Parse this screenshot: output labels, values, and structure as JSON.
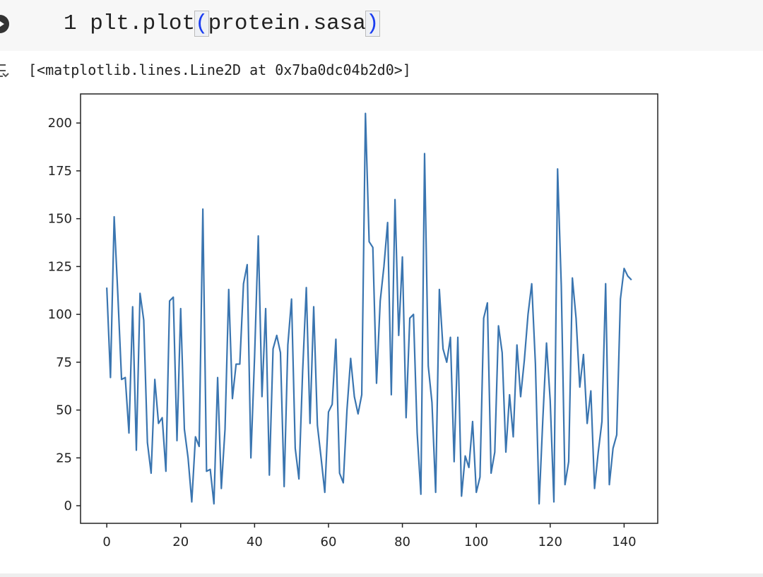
{
  "code_cell": {
    "line_number": "1",
    "tokens": [
      "plt.plot",
      "(",
      "protein.sasa",
      ")"
    ]
  },
  "output_text": "[<matplotlib.lines.Line2D at 0x7ba0dc04b2d0>]",
  "chart_data": {
    "type": "line",
    "x": [
      0,
      1,
      2,
      3,
      4,
      5,
      6,
      7,
      8,
      9,
      10,
      11,
      12,
      13,
      14,
      15,
      16,
      17,
      18,
      19,
      20,
      21,
      22,
      23,
      24,
      25,
      26,
      27,
      28,
      29,
      30,
      31,
      32,
      33,
      34,
      35,
      36,
      37,
      38,
      39,
      40,
      41,
      42,
      43,
      44,
      45,
      46,
      47,
      48,
      49,
      50,
      51,
      52,
      53,
      54,
      55,
      56,
      57,
      58,
      59,
      60,
      61,
      62,
      63,
      64,
      65,
      66,
      67,
      68,
      69,
      70,
      71,
      72,
      73,
      74,
      75,
      76,
      77,
      78,
      79,
      80,
      81,
      82,
      83,
      84,
      85,
      86,
      87,
      88,
      89,
      90,
      91,
      92,
      93,
      94,
      95,
      96,
      97,
      98,
      99,
      100,
      101,
      102,
      103,
      104,
      105,
      106,
      107,
      108,
      109,
      110,
      111,
      112,
      113,
      114,
      115,
      116,
      117,
      118,
      119,
      120,
      121,
      122,
      123,
      124,
      125,
      126,
      127,
      128,
      129,
      130,
      131,
      132,
      133,
      134,
      135,
      136,
      137,
      138,
      139,
      140,
      141,
      142
    ],
    "series": [
      {
        "color": "#3a75b0",
        "values": [
          114,
          67,
          151,
          110,
          66,
          67,
          38,
          104,
          29,
          111,
          97,
          33,
          17,
          66,
          43,
          46,
          18,
          107,
          109,
          34,
          103,
          40,
          25,
          2,
          36,
          31,
          155,
          18,
          19,
          1,
          67,
          9,
          40,
          113,
          56,
          74,
          74,
          116,
          126,
          25,
          78,
          141,
          57,
          103,
          16,
          82,
          89,
          80,
          10,
          84,
          108,
          30,
          14,
          70,
          114,
          43,
          104,
          42,
          25,
          7,
          49,
          53,
          87,
          17,
          12,
          50,
          77,
          57,
          48,
          58,
          205,
          138,
          135,
          64,
          107,
          125,
          148,
          58,
          160,
          89,
          130,
          46,
          98,
          100,
          38,
          6,
          184,
          73,
          54,
          7,
          113,
          82,
          75,
          88,
          23,
          88,
          5,
          26,
          20,
          44,
          7,
          15,
          98,
          106,
          17,
          28,
          94,
          80,
          28,
          58,
          36,
          84,
          57,
          76,
          100,
          116,
          74,
          1,
          45,
          85,
          55,
          2,
          176,
          115,
          11,
          23,
          119,
          98,
          62,
          79,
          43,
          60,
          9,
          28,
          44,
          116,
          11,
          30,
          37,
          108,
          124,
          120,
          118
        ]
      }
    ],
    "xlim": [
      -7.1,
      149.1
    ],
    "xticks": [
      0,
      20,
      40,
      60,
      80,
      100,
      120,
      140
    ],
    "ylim": [
      -9.2,
      215.2
    ],
    "yticks": [
      0,
      25,
      50,
      75,
      100,
      125,
      150,
      175,
      200
    ]
  }
}
